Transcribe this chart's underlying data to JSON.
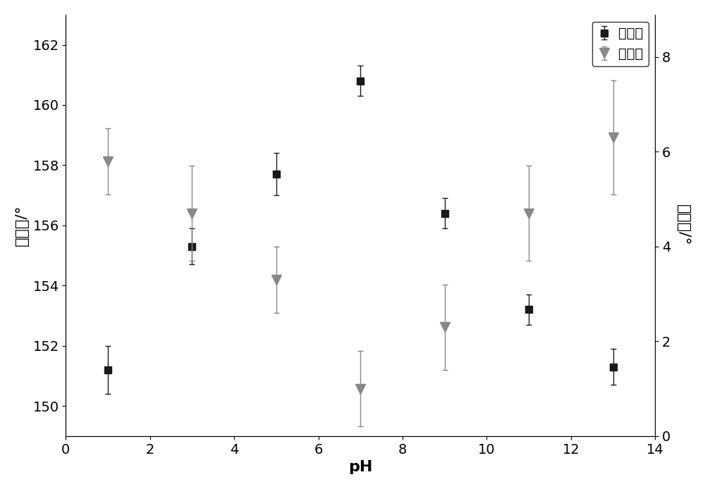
{
  "ph": [
    1,
    3,
    5,
    7,
    9,
    11,
    13
  ],
  "contact_angle": [
    151.2,
    155.3,
    157.7,
    160.8,
    156.4,
    153.2,
    151.3
  ],
  "contact_angle_err": [
    0.8,
    0.6,
    0.7,
    0.5,
    0.5,
    0.5,
    0.6
  ],
  "rolling_angle": [
    5.8,
    4.7,
    3.3,
    1.0,
    2.3,
    4.7,
    6.3
  ],
  "rolling_angle_err": [
    0.7,
    1.0,
    0.7,
    0.8,
    0.9,
    1.0,
    1.2
  ],
  "left_ylim": [
    149,
    163
  ],
  "left_yticks": [
    150,
    152,
    154,
    156,
    158,
    160,
    162
  ],
  "right_ylim": [
    0,
    8.889
  ],
  "right_yticks": [
    0,
    2,
    4,
    6,
    8
  ],
  "xlim": [
    0,
    14
  ],
  "xticks": [
    0,
    2,
    4,
    6,
    8,
    10,
    12,
    14
  ],
  "xlabel": "pH",
  "ylabel_left": "接触角/°",
  "ylabel_right": "滚动角/°",
  "legend_contact": "接触角",
  "legend_rolling": "滚动角",
  "contact_color": "#1a1a1a",
  "rolling_color": "#888888",
  "bg_color": "#ffffff",
  "fontsize_label": 16,
  "fontsize_tick": 14,
  "fontsize_legend": 14
}
